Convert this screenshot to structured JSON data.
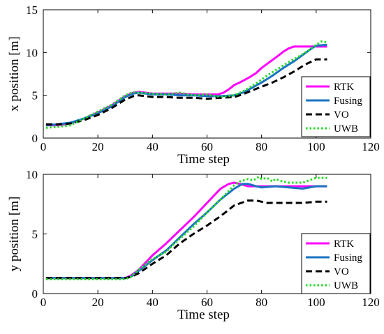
{
  "chart_data": [
    {
      "type": "line",
      "xlabel": "Time step",
      "ylabel": "x position [m]",
      "xlim": [
        0,
        120
      ],
      "ylim": [
        0,
        15
      ],
      "xticks": [
        "0",
        "20",
        "40",
        "60",
        "80",
        "100",
        "120"
      ],
      "yticks": [
        "0",
        "5",
        "10",
        "15"
      ],
      "legend_position": "bottom-right",
      "grid": false,
      "series": [
        {
          "name": "RTK",
          "color": "#ff00ff",
          "style": "solid",
          "x": [
            1,
            5,
            10,
            15,
            20,
            25,
            30,
            33,
            35,
            40,
            45,
            50,
            55,
            60,
            64,
            66,
            68,
            70,
            72,
            75,
            78,
            80,
            83,
            86,
            88,
            90,
            92,
            95,
            97,
            100,
            104
          ],
          "y": [
            1.5,
            1.5,
            1.7,
            2.3,
            3.0,
            3.8,
            4.9,
            5.3,
            5.4,
            5.2,
            5.2,
            5.2,
            5.1,
            5.1,
            5.1,
            5.3,
            5.7,
            6.2,
            6.5,
            7.0,
            7.6,
            8.2,
            8.9,
            9.6,
            10.1,
            10.5,
            10.7,
            10.7,
            10.7,
            10.7,
            10.7
          ]
        },
        {
          "name": "Fusing",
          "color": "#1a73c2",
          "style": "solid",
          "x": [
            1,
            5,
            10,
            15,
            20,
            25,
            30,
            33,
            35,
            40,
            45,
            50,
            55,
            60,
            65,
            70,
            73,
            76,
            80,
            84,
            88,
            92,
            95,
            98,
            100,
            104
          ],
          "y": [
            1.5,
            1.6,
            1.8,
            2.3,
            2.9,
            3.7,
            4.8,
            5.2,
            5.3,
            5.1,
            5.1,
            5.0,
            5.0,
            4.9,
            4.9,
            5.0,
            5.3,
            5.8,
            6.5,
            7.3,
            8.2,
            9.0,
            9.7,
            10.4,
            10.8,
            10.9
          ]
        },
        {
          "name": "VO",
          "color": "#000000",
          "style": "dashed",
          "x": [
            1,
            5,
            10,
            15,
            20,
            25,
            30,
            33,
            35,
            40,
            45,
            50,
            55,
            60,
            65,
            70,
            73,
            76,
            80,
            84,
            88,
            92,
            96,
            100,
            104
          ],
          "y": [
            1.6,
            1.6,
            1.7,
            2.1,
            2.7,
            3.5,
            4.5,
            4.9,
            5.0,
            4.8,
            4.8,
            4.7,
            4.7,
            4.6,
            4.7,
            4.8,
            5.1,
            5.5,
            6.0,
            6.5,
            7.1,
            7.8,
            8.6,
            9.2,
            9.2
          ]
        },
        {
          "name": "UWB",
          "color": "#22dd22",
          "style": "dotted",
          "x": [
            1,
            5,
            10,
            15,
            20,
            25,
            30,
            33,
            35,
            40,
            45,
            50,
            55,
            60,
            65,
            70,
            74,
            78,
            82,
            86,
            90,
            94,
            97,
            100,
            102,
            104
          ],
          "y": [
            1.2,
            1.3,
            1.5,
            2.3,
            3.1,
            3.9,
            5.0,
            5.4,
            5.3,
            5.2,
            5.1,
            5.3,
            5.0,
            5.1,
            4.8,
            5.0,
            5.6,
            6.4,
            7.3,
            8.1,
            8.9,
            9.6,
            10.2,
            10.9,
            11.3,
            11.2
          ]
        }
      ]
    },
    {
      "type": "line",
      "xlabel": "Time step",
      "ylabel": "y position [m]",
      "xlim": [
        0,
        120
      ],
      "ylim": [
        0,
        10
      ],
      "xticks": [
        "0",
        "20",
        "40",
        "60",
        "80",
        "100",
        "120"
      ],
      "yticks": [
        "0",
        "5",
        "10"
      ],
      "legend_position": "bottom-right",
      "grid": false,
      "series": [
        {
          "name": "RTK",
          "color": "#ff00ff",
          "style": "solid",
          "x": [
            1,
            10,
            20,
            30,
            32,
            35,
            40,
            45,
            50,
            55,
            60,
            65,
            68,
            70,
            72,
            75,
            80,
            85,
            90,
            95,
            100,
            104
          ],
          "y": [
            1.3,
            1.3,
            1.3,
            1.3,
            1.5,
            2.0,
            3.2,
            4.2,
            5.3,
            6.4,
            7.6,
            8.8,
            9.2,
            9.3,
            9.2,
            9.0,
            9.0,
            9.0,
            9.0,
            9.0,
            9.0,
            9.0
          ]
        },
        {
          "name": "Fusing",
          "color": "#1a73c2",
          "style": "solid",
          "x": [
            1,
            10,
            20,
            30,
            32,
            35,
            40,
            45,
            50,
            55,
            60,
            65,
            70,
            73,
            75,
            78,
            80,
            85,
            90,
            95,
            100,
            104
          ],
          "y": [
            1.3,
            1.3,
            1.3,
            1.3,
            1.4,
            1.9,
            2.8,
            3.6,
            4.7,
            5.8,
            6.8,
            7.9,
            8.8,
            9.2,
            9.2,
            9.0,
            8.9,
            9.0,
            8.9,
            8.8,
            9.0,
            9.0
          ]
        },
        {
          "name": "VO",
          "color": "#000000",
          "style": "dashed",
          "x": [
            1,
            10,
            20,
            30,
            32,
            35,
            40,
            45,
            50,
            55,
            60,
            65,
            70,
            75,
            78,
            80,
            82,
            85,
            90,
            95,
            100,
            104
          ],
          "y": [
            1.3,
            1.3,
            1.3,
            1.3,
            1.4,
            1.7,
            2.5,
            3.2,
            4.2,
            5.0,
            5.7,
            6.5,
            7.4,
            7.8,
            7.8,
            7.7,
            7.6,
            7.6,
            7.6,
            7.6,
            7.7,
            7.7
          ]
        },
        {
          "name": "UWB",
          "color": "#22dd22",
          "style": "dotted",
          "x": [
            1,
            10,
            20,
            30,
            32,
            35,
            40,
            45,
            50,
            55,
            60,
            65,
            70,
            72,
            75,
            77,
            79,
            80,
            82,
            84,
            85,
            88,
            90,
            95,
            100,
            104
          ],
          "y": [
            1.2,
            1.2,
            1.2,
            1.2,
            1.4,
            2.0,
            2.9,
            3.5,
            4.6,
            5.6,
            6.8,
            7.9,
            9.1,
            9.4,
            9.6,
            9.5,
            9.8,
            9.6,
            9.7,
            9.4,
            9.6,
            9.4,
            9.3,
            9.3,
            9.7,
            9.7
          ]
        }
      ]
    }
  ]
}
